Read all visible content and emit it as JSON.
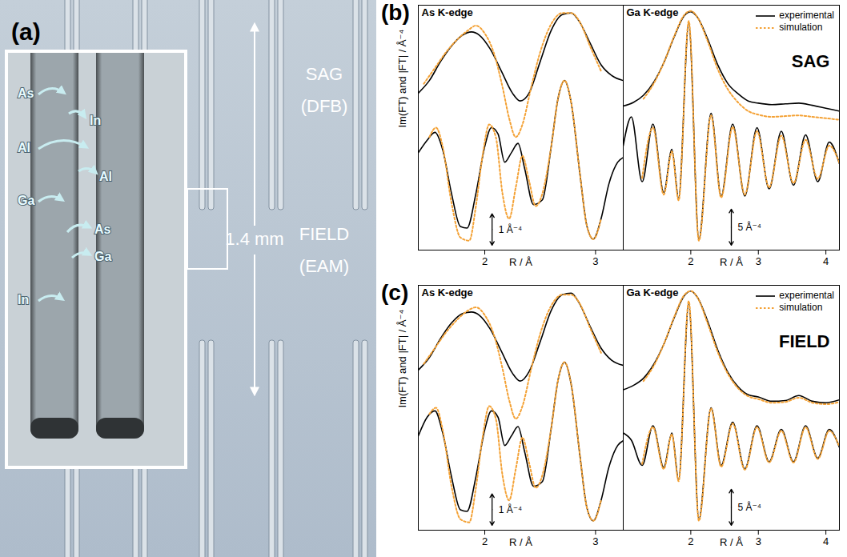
{
  "figure_a": {
    "panel": "(a)",
    "labels": [
      "SAG (DFB)",
      "FIELD (EAM)"
    ],
    "distance": "1.4 mm",
    "inset_labels": [
      "As",
      "In",
      "Al",
      "Al",
      "Ga",
      "As",
      "Ga",
      "In"
    ]
  },
  "chart_data": [
    {
      "type": "line",
      "panel": "(b)",
      "title": "As K-edge",
      "x_label": "R / Å",
      "y_label": "Im(FT) and |FT| / Å⁻⁴",
      "xlim": [
        1.4,
        3.25
      ],
      "ylim": [
        -2.4,
        5.4
      ],
      "xticks": [
        2,
        3
      ],
      "tick_labels": "x",
      "scale_bar": {
        "value": 1,
        "label": "1 Å⁻⁴"
      },
      "series": [
        {
          "name": "experimental",
          "color": "#000000",
          "line_style": "solid",
          "x": [
            1.4,
            1.5,
            1.6,
            1.7,
            1.8,
            1.88,
            1.95,
            2.05,
            2.15,
            2.25,
            2.32,
            2.4,
            2.5,
            2.6,
            2.7,
            2.78,
            2.85,
            2.95,
            3.05,
            3.15,
            3.25,
            null,
            1.4,
            1.48,
            1.55,
            1.62,
            1.7,
            1.78,
            1.84,
            1.92,
            2.0,
            2.06,
            2.12,
            2.18,
            2.24,
            2.3,
            2.36,
            2.44,
            2.52,
            2.6,
            2.66,
            2.72,
            2.78,
            2.86,
            2.92,
            2.98,
            3.05,
            3.12,
            3.2,
            3.25
          ],
          "values": [
            2.6,
            3.0,
            3.6,
            4.1,
            4.45,
            4.55,
            4.45,
            4.0,
            3.3,
            2.6,
            2.35,
            2.6,
            3.6,
            4.6,
            5.1,
            5.15,
            4.9,
            4.2,
            3.5,
            3.15,
            3.0,
            null,
            0.7,
            1.1,
            1.35,
            0.8,
            -0.6,
            -1.65,
            -1.7,
            -0.6,
            0.9,
            1.5,
            1.3,
            0.4,
            0.7,
            1.0,
            0.2,
            -0.95,
            -0.8,
            0.9,
            2.4,
            3.0,
            2.3,
            0.0,
            -1.6,
            -2.05,
            -1.4,
            -0.3,
            0.4,
            0.55
          ]
        },
        {
          "name": "simulation",
          "color": "#f4a236",
          "line_style": "dotted",
          "x": [
            1.45,
            1.55,
            1.65,
            1.75,
            1.85,
            1.92,
            2.0,
            2.08,
            2.16,
            2.22,
            2.28,
            2.34,
            2.42,
            2.5,
            2.6,
            2.7,
            2.78,
            2.86,
            2.95,
            3.05,
            null,
            1.5,
            1.56,
            1.62,
            1.7,
            1.78,
            1.86,
            1.92,
            1.98,
            2.04,
            2.1,
            2.16,
            2.22,
            2.28,
            2.34,
            2.4,
            2.46,
            2.52,
            2.6,
            2.66,
            2.72,
            2.78,
            2.86,
            2.92,
            2.98,
            3.05
          ],
          "values": [
            2.9,
            3.4,
            3.9,
            4.3,
            4.6,
            4.75,
            4.5,
            3.9,
            2.8,
            1.8,
            1.2,
            1.6,
            2.8,
            3.9,
            4.8,
            5.15,
            5.15,
            4.85,
            4.1,
            3.3,
            null,
            1.2,
            1.5,
            0.9,
            -0.9,
            -2.0,
            -2.1,
            -1.0,
            0.6,
            1.6,
            1.2,
            -0.6,
            -1.4,
            -0.4,
            0.6,
            -0.2,
            -1.0,
            -0.6,
            0.9,
            2.4,
            3.0,
            2.3,
            0.0,
            -1.6,
            -2.05,
            -1.4
          ]
        }
      ]
    },
    {
      "type": "line",
      "title": "Ga K-edge",
      "x_label": "R / Å",
      "xlim": [
        1.0,
        4.2
      ],
      "ylim": [
        -11.5,
        22.5
      ],
      "xticks": [
        2,
        3,
        4
      ],
      "tick_labels": "x",
      "scale_bar": {
        "value": 5,
        "label": "5 Å⁻⁴"
      },
      "annotations": [
        "SAG"
      ],
      "legend": "top-right",
      "series": [
        {
          "name": "experimental",
          "color": "#000000",
          "line_style": "solid",
          "x": [
            1.0,
            1.15,
            1.3,
            1.45,
            1.6,
            1.75,
            1.9,
            2.0,
            2.1,
            2.25,
            2.4,
            2.55,
            2.7,
            2.85,
            3.0,
            3.2,
            3.4,
            3.6,
            3.8,
            4.0,
            4.2,
            null,
            1.0,
            1.12,
            1.28,
            1.44,
            1.6,
            1.72,
            1.82,
            1.97,
            2.12,
            2.3,
            2.45,
            2.62,
            2.8,
            2.98,
            3.16,
            3.34,
            3.52,
            3.7,
            3.88,
            4.05,
            4.2
          ],
          "values": [
            8.5,
            9.0,
            10.0,
            11.8,
            14.5,
            18.0,
            21.0,
            21.6,
            20.8,
            17.8,
            14.2,
            11.6,
            10.2,
            9.2,
            8.9,
            8.7,
            8.8,
            8.9,
            8.6,
            8.2,
            7.8,
            null,
            3,
            7,
            -2,
            6,
            -3.5,
            2.5,
            -4.3,
            20,
            -10,
            7.5,
            -4,
            6,
            -4,
            5.5,
            -3,
            5,
            -2.5,
            4.5,
            -2,
            3.5,
            0.5
          ]
        },
        {
          "name": "simulation",
          "color": "#f4a236",
          "line_style": "dotted",
          "x": [
            1.3,
            1.45,
            1.6,
            1.75,
            1.9,
            2.0,
            2.1,
            2.25,
            2.4,
            2.55,
            2.7,
            2.85,
            3.0,
            3.2,
            3.4,
            3.6,
            3.8,
            4.0,
            4.2,
            null,
            1.28,
            1.44,
            1.6,
            1.72,
            1.82,
            1.97,
            2.12,
            2.3,
            2.45,
            2.62,
            2.8,
            2.98,
            3.16,
            3.34,
            3.52,
            3.7,
            3.88,
            4.05,
            4.2
          ],
          "values": [
            9.5,
            11.6,
            14.5,
            18.1,
            21.1,
            21.7,
            20.8,
            17.5,
            13.6,
            10.8,
            9.0,
            7.8,
            7.3,
            7.0,
            7.1,
            7.2,
            7.0,
            6.8,
            6.6,
            null,
            -1.5,
            5.5,
            -3.8,
            2.2,
            -4.6,
            20.3,
            -10.2,
            7.2,
            -4.2,
            5.6,
            -3.8,
            5.0,
            -2.8,
            4.4,
            -2.2,
            3.8,
            -1.6,
            3.0,
            0.6
          ]
        }
      ]
    },
    {
      "type": "line",
      "panel": "(c)",
      "title": "As K-edge",
      "x_label": "R / Å",
      "y_label": "Im(FT) and |FT| / Å⁻⁴",
      "xlim": [
        1.4,
        3.25
      ],
      "ylim": [
        -2.4,
        5.4
      ],
      "xticks": [
        2,
        3
      ],
      "tick_labels": "x",
      "scale_bar": {
        "value": 1,
        "label": "1 Å⁻⁴"
      },
      "series": [
        {
          "name": "experimental",
          "color": "#000000",
          "line_style": "solid",
          "x": [
            1.4,
            1.5,
            1.6,
            1.7,
            1.8,
            1.88,
            1.95,
            2.05,
            2.15,
            2.25,
            2.32,
            2.4,
            2.5,
            2.6,
            2.7,
            2.78,
            2.85,
            2.95,
            3.05,
            3.15,
            3.25,
            null,
            1.4,
            1.48,
            1.55,
            1.62,
            1.7,
            1.78,
            1.84,
            1.92,
            2.0,
            2.06,
            2.12,
            2.18,
            2.24,
            2.3,
            2.36,
            2.44,
            2.52,
            2.6,
            2.66,
            2.72,
            2.78,
            2.86,
            2.92,
            2.98,
            3.05,
            3.12,
            3.2,
            3.25
          ],
          "values": [
            2.7,
            3.1,
            3.7,
            4.2,
            4.5,
            4.55,
            4.45,
            4.0,
            3.3,
            2.6,
            2.35,
            2.65,
            3.6,
            4.6,
            5.1,
            5.15,
            4.85,
            4.1,
            3.4,
            3.0,
            2.85,
            null,
            0.6,
            1.2,
            1.4,
            0.7,
            -0.7,
            -1.75,
            -1.8,
            -0.7,
            0.8,
            1.4,
            1.2,
            0.3,
            0.6,
            0.9,
            0.1,
            -1.0,
            -0.85,
            0.85,
            2.35,
            2.95,
            2.25,
            -0.05,
            -1.65,
            -2.1,
            -1.45,
            -0.4,
            0.3,
            0.45
          ]
        },
        {
          "name": "simulation",
          "color": "#f4a236",
          "line_style": "dotted",
          "x": [
            1.45,
            1.55,
            1.65,
            1.75,
            1.85,
            1.92,
            2.0,
            2.08,
            2.16,
            2.22,
            2.28,
            2.34,
            2.42,
            2.5,
            2.6,
            2.7,
            2.78,
            2.86,
            2.95,
            3.05,
            null,
            1.5,
            1.56,
            1.62,
            1.7,
            1.78,
            1.86,
            1.92,
            1.98,
            2.04,
            2.1,
            2.16,
            2.22,
            2.28,
            2.34,
            2.4,
            2.46,
            2.52,
            2.6,
            2.66,
            2.72,
            2.78,
            2.86,
            2.92,
            2.98,
            3.05
          ],
          "values": [
            2.9,
            3.4,
            3.9,
            4.3,
            4.6,
            4.7,
            4.45,
            3.85,
            2.75,
            1.75,
            1.15,
            1.55,
            2.75,
            3.85,
            4.75,
            5.1,
            5.1,
            4.8,
            4.05,
            3.25,
            null,
            1.3,
            1.5,
            0.8,
            -1.0,
            -2.05,
            -2.15,
            -1.05,
            0.55,
            1.55,
            1.15,
            -0.65,
            -1.45,
            -0.45,
            0.55,
            -0.25,
            -1.05,
            -0.65,
            0.85,
            2.35,
            2.95,
            2.25,
            -0.05,
            -1.65,
            -2.1,
            -1.45
          ]
        }
      ]
    },
    {
      "type": "line",
      "title": "Ga K-edge",
      "x_label": "R / Å",
      "xlim": [
        1.0,
        4.2
      ],
      "ylim": [
        -11.5,
        22.5
      ],
      "xticks": [
        2,
        3,
        4
      ],
      "tick_labels": "x",
      "scale_bar": {
        "value": 5,
        "label": "5 Å⁻⁴"
      },
      "annotations": [
        "FIELD"
      ],
      "legend": "top-right",
      "series": [
        {
          "name": "experimental",
          "color": "#000000",
          "line_style": "solid",
          "x": [
            1.0,
            1.15,
            1.3,
            1.45,
            1.6,
            1.75,
            1.9,
            2.0,
            2.1,
            2.25,
            2.4,
            2.55,
            2.7,
            2.85,
            3.0,
            3.2,
            3.4,
            3.6,
            3.8,
            4.0,
            4.2,
            null,
            1.0,
            1.12,
            1.28,
            1.44,
            1.6,
            1.72,
            1.82,
            1.97,
            2.12,
            2.3,
            2.45,
            2.62,
            2.8,
            2.98,
            3.16,
            3.34,
            3.52,
            3.7,
            3.88,
            4.05,
            4.2
          ],
          "values": [
            8.0,
            8.6,
            9.6,
            11.5,
            14.3,
            17.9,
            21.0,
            21.7,
            20.8,
            17.5,
            13.5,
            10.4,
            8.4,
            7.3,
            7.0,
            6.4,
            6.5,
            7.2,
            6.4,
            6.2,
            6.6,
            null,
            2,
            1,
            -2.5,
            3,
            -2.8,
            2,
            -4.5,
            20,
            -10,
            5.5,
            -2.5,
            3.5,
            -3,
            3,
            -2,
            2.5,
            -2,
            3,
            -1.5,
            2.5,
            0
          ]
        },
        {
          "name": "simulation",
          "color": "#f4a236",
          "line_style": "dotted",
          "x": [
            1.3,
            1.45,
            1.6,
            1.75,
            1.9,
            2.0,
            2.1,
            2.25,
            2.4,
            2.55,
            2.7,
            2.85,
            3.0,
            3.2,
            3.4,
            3.6,
            3.8,
            4.0,
            4.2,
            null,
            1.28,
            1.44,
            1.6,
            1.72,
            1.82,
            1.97,
            2.12,
            2.3,
            2.45,
            2.62,
            2.8,
            2.98,
            3.16,
            3.34,
            3.52,
            3.7,
            3.88,
            4.05,
            4.2
          ],
          "values": [
            9.2,
            11.3,
            14.3,
            18.0,
            21.1,
            21.7,
            20.8,
            17.2,
            13.2,
            10.2,
            8.2,
            7.1,
            6.7,
            6.2,
            6.3,
            6.9,
            6.2,
            6.0,
            6.3,
            null,
            -2.3,
            2.8,
            -3.0,
            1.8,
            -4.7,
            20.3,
            -10.2,
            5.4,
            -2.7,
            3.3,
            -3.1,
            2.8,
            -2.1,
            2.3,
            -2.1,
            2.8,
            -1.6,
            2.3,
            0.1
          ]
        }
      ]
    }
  ]
}
